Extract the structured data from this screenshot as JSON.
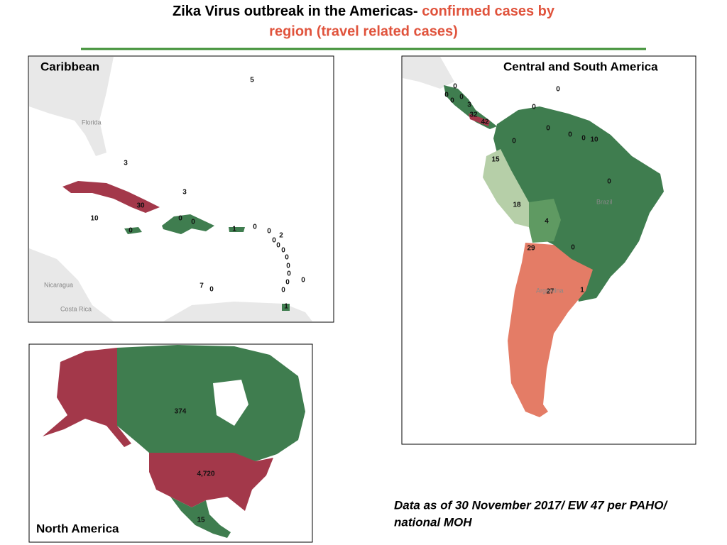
{
  "header": {
    "title_black": "Zika Virus outbreak in the Americas- ",
    "title_red_line1": "confirmed cases by",
    "title_red_line2": "region (travel related cases)"
  },
  "panels": {
    "caribbean": {
      "title": "Caribbean",
      "places": [
        "Florida",
        "Nicaragua",
        "Costa Rica"
      ],
      "labels": [
        "5",
        "3",
        "3",
        "30",
        "10",
        "0",
        "0",
        "0",
        "1",
        "0",
        "0",
        "2",
        "0",
        "0",
        "0",
        "0",
        "0",
        "0",
        "0",
        "0",
        "0",
        "7",
        "0",
        "1"
      ]
    },
    "central_south": {
      "title": "Central and South America",
      "places": [
        "Brazil",
        "Argentina"
      ],
      "labels": [
        "0",
        "0",
        "0",
        "0",
        "3",
        "32",
        "42",
        "0",
        "0",
        "0",
        "0",
        "0",
        "0",
        "10",
        "15",
        "0",
        "18",
        "4",
        "29",
        "0",
        "27",
        "1"
      ]
    },
    "north": {
      "title": "North America",
      "labels": [
        "374",
        "4,720",
        "15"
      ]
    }
  },
  "footnote": {
    "line1": "Data as of 30 November 2017/ EW 47 per PAHO/",
    "line2": "national MOH"
  }
}
